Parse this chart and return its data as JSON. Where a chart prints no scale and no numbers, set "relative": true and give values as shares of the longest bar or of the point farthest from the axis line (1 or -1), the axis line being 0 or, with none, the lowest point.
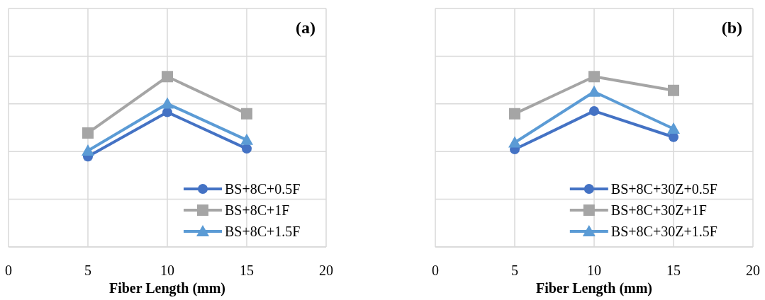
{
  "chart_data": [
    {
      "type": "line",
      "relative": true,
      "annotations": [
        "(a)"
      ],
      "xlabel": "Fiber Length (mm)",
      "x": [
        5,
        10,
        15
      ],
      "xlim": [
        0,
        20
      ],
      "xticks": [
        0,
        5,
        10,
        15,
        20
      ],
      "tick_labels": "x",
      "grid": true,
      "legend": "bottom right",
      "line_style": "solid",
      "series": [
        {
          "name": "BS+8C+0.5F",
          "color": "#4472c4",
          "marker": "circle",
          "values": [
            0.531,
            0.791,
            0.577
          ]
        },
        {
          "name": "BS+8C+1F",
          "color": "#a5a5a5",
          "marker": "square",
          "values": [
            0.669,
            1,
            0.782
          ]
        },
        {
          "name": "BS+8C+1.5F",
          "color": "#5b9bd5",
          "marker": "triangle",
          "values": [
            0.565,
            0.841,
            0.628
          ]
        }
      ]
    },
    {
      "type": "line",
      "relative": true,
      "annotations": [
        "(b)"
      ],
      "xlabel": "Fiber Length (mm)",
      "x": [
        5,
        10,
        15
      ],
      "xlim": [
        0,
        20
      ],
      "xticks": [
        0,
        5,
        10,
        15,
        20
      ],
      "tick_labels": "x",
      "grid": true,
      "legend": "bottom right",
      "line_style": "solid",
      "series": [
        {
          "name": "BS+8C+30Z+0.5F",
          "color": "#4472c4",
          "marker": "circle",
          "values": [
            0.573,
            0.798,
            0.645
          ]
        },
        {
          "name": "BS+8C+30Z+1F",
          "color": "#a5a5a5",
          "marker": "square",
          "values": [
            0.782,
            1,
            0.919
          ]
        },
        {
          "name": "BS+8C+30Z+1.5F",
          "color": "#5b9bd5",
          "marker": "triangle",
          "values": [
            0.613,
            0.911,
            0.694
          ]
        }
      ]
    }
  ]
}
